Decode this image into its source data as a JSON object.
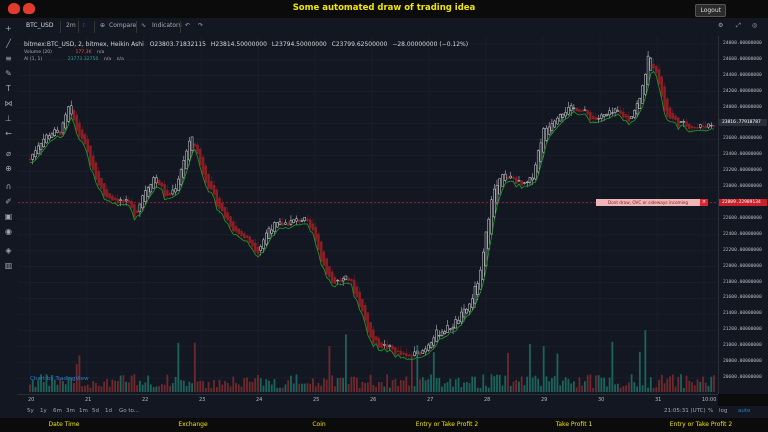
{
  "app": {
    "title": "Some automated draw of trading idea",
    "logout_label": "Logout"
  },
  "toolbar": {
    "symbol": "BTC_USD",
    "interval": "2m",
    "compare_label": "Compare",
    "indicators_label": "Indicators"
  },
  "legend": {
    "main": "bitmex:BTC_USD, 2, bitmex, Heikin Ashi",
    "o": "O23803.71832115",
    "h": "H23814.50000000",
    "l": "L23794.50000000",
    "c": "C23799.62500000",
    "change": "−28.00000000 (−0.12%)",
    "volume_label": "Volume (20)",
    "volume_value": "177.3K",
    "volume_na": "n/a",
    "al_label": "Al (1, 1)",
    "al_value": "23773.32750",
    "al_na": "n/a",
    "al_na2": "n/a"
  },
  "price_axis": {
    "labels": [
      "24800.00000000",
      "24600.00000000",
      "24400.00000000",
      "24200.00000000",
      "24000.00000000",
      "23800.00000000",
      "23600.00000000",
      "23400.00000000",
      "23200.00000000",
      "23000.00000000",
      "22800.00000000",
      "22600.00000000",
      "22400.00000000",
      "22200.00000000",
      "22000.00000000",
      "21800.00000000",
      "21600.00000000",
      "21400.00000000",
      "21200.00000000",
      "21000.00000000",
      "20800.00000000",
      "20600.00000000"
    ],
    "current_price": "23816.77918787",
    "marker_price": "22809.22989134"
  },
  "time_axis": {
    "labels": [
      "20",
      "21",
      "22",
      "23",
      "24",
      "25",
      "26",
      "27",
      "28",
      "29",
      "30",
      "31",
      "10:00"
    ]
  },
  "bottom_bar": {
    "ranges": [
      "5y",
      "1y",
      "6m",
      "3m",
      "1m",
      "5d",
      "1d"
    ],
    "goto_label": "Go to...",
    "clock": "21:05:31 (UTC)",
    "pct": "%",
    "log": "log",
    "auto": "auto"
  },
  "annotation": {
    "text": "Dont draw, OVC or sideways incoming",
    "close": "×"
  },
  "watermark": "Chart by TradingView",
  "footer": [
    "Date Time",
    "Exchange",
    "Coin",
    "Entry or Take Profit 2",
    "Take Profit 1",
    "Entry or Take Profit 2"
  ],
  "colors": {
    "title": "#f2e600",
    "up": "#26a69a",
    "down": "#ef5350",
    "candle_up": "#d8d8d8",
    "candle_down": "#8c1f24",
    "al_line": "#1f9e2a",
    "dashed_line": "#c8232c",
    "background": "#131722"
  },
  "chart_data": {
    "type": "candlestick",
    "title": "bitmex:BTC_USD, 2, bitmex, Heikin Ashi",
    "ylim": [
      20600,
      24800
    ],
    "x": [
      "20",
      "21",
      "22",
      "23",
      "24",
      "25",
      "26",
      "27",
      "28",
      "29",
      "30",
      "31",
      "10:00"
    ],
    "close_path": [
      [
        0,
        23350
      ],
      [
        0.15,
        23550
      ],
      [
        0.35,
        23680
      ],
      [
        0.55,
        23700
      ],
      [
        0.7,
        24050
      ],
      [
        0.8,
        23750
      ],
      [
        1.0,
        23450
      ],
      [
        1.1,
        23200
      ],
      [
        1.3,
        22900
      ],
      [
        1.5,
        22850
      ],
      [
        1.7,
        22800
      ],
      [
        1.85,
        22650
      ],
      [
        2.0,
        22950
      ],
      [
        2.2,
        23150
      ],
      [
        2.4,
        22850
      ],
      [
        2.55,
        23000
      ],
      [
        2.7,
        23350
      ],
      [
        2.85,
        23650
      ],
      [
        3.0,
        23250
      ],
      [
        3.2,
        22900
      ],
      [
        3.4,
        22650
      ],
      [
        3.6,
        22450
      ],
      [
        3.8,
        22350
      ],
      [
        4.0,
        22200
      ],
      [
        4.2,
        22500
      ],
      [
        4.5,
        22550
      ],
      [
        4.8,
        22600
      ],
      [
        5.0,
        22400
      ],
      [
        5.1,
        22100
      ],
      [
        5.3,
        21800
      ],
      [
        5.6,
        21850
      ],
      [
        5.8,
        21500
      ],
      [
        6.0,
        21050
      ],
      [
        6.3,
        20980
      ],
      [
        6.6,
        20850
      ],
      [
        6.9,
        20950
      ],
      [
        7.1,
        21150
      ],
      [
        7.4,
        21250
      ],
      [
        7.7,
        21500
      ],
      [
        7.9,
        21900
      ],
      [
        8.0,
        22400
      ],
      [
        8.1,
        22900
      ],
      [
        8.3,
        23150
      ],
      [
        8.5,
        23100
      ],
      [
        8.65,
        23000
      ],
      [
        8.8,
        23100
      ],
      [
        9.0,
        23700
      ],
      [
        9.3,
        23950
      ],
      [
        9.6,
        24000
      ],
      [
        9.9,
        23850
      ],
      [
        10.1,
        23900
      ],
      [
        10.3,
        23950
      ],
      [
        10.5,
        23850
      ],
      [
        10.7,
        24100
      ],
      [
        10.85,
        24650
      ],
      [
        11.0,
        24450
      ],
      [
        11.15,
        23900
      ],
      [
        11.4,
        23800
      ],
      [
        11.7,
        23750
      ],
      [
        12.0,
        23800
      ]
    ],
    "volume_label": "Volume (20)"
  }
}
